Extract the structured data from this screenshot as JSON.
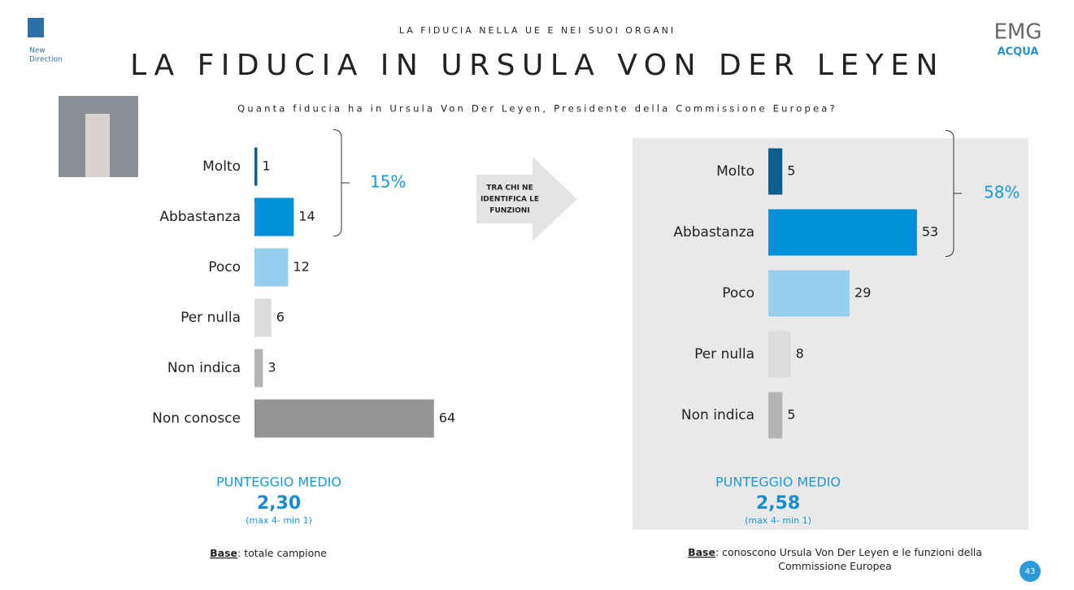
{
  "header": {
    "kicker": "LA FIDUCIA NELLA UE E NEI SUOI ORGANI",
    "title": "LA FIDUCIA IN URSULA VON DER LEYEN",
    "question": "Quanta fiducia ha in Ursula Von Der Leyen, Presidente della Commissione Europea?"
  },
  "logos": {
    "left": [
      "New",
      "Direction"
    ],
    "right": [
      "EMG",
      "ACQUA"
    ]
  },
  "arrow_label": [
    "TRA CHI  NE",
    "IDENTIFICA LE",
    "FUNZIONI"
  ],
  "page_number": "43",
  "chart_data": [
    {
      "type": "bar",
      "orientation": "horizontal",
      "categories": [
        "Molto",
        "Abbastanza",
        "Poco",
        "Per nulla",
        "Non indica",
        "Non conosce"
      ],
      "values": [
        1,
        14,
        12,
        6,
        3,
        64
      ],
      "colors": [
        "#0b5e8e",
        "#0090d9",
        "#95cfee",
        "#dcdcdc",
        "#b4b4b6",
        "#959595"
      ],
      "bracket_label": "15%",
      "score_title": "PUNTEGGIO MEDIO",
      "score": "2,30",
      "score_note": "(max 4- min 1)",
      "base_label": "Base",
      "base_text": [
        ": totale campione"
      ]
    },
    {
      "type": "bar",
      "orientation": "horizontal",
      "categories": [
        "Molto",
        "Abbastanza",
        "Poco",
        "Per nulla",
        "Non indica"
      ],
      "values": [
        5,
        53,
        29,
        8,
        5
      ],
      "colors": [
        "#0b5e8e",
        "#0090d9",
        "#95cfee",
        "#dcdcdc",
        "#b4b4b6"
      ],
      "bracket_label": "58%",
      "score_title": "PUNTEGGIO MEDIO",
      "score": "2,58",
      "score_note": "(max 4- min 1)",
      "base_label": "Base",
      "base_text": [
        ": conoscono Ursula Von Der Leyen e le funzioni della",
        "Commissione Europea"
      ]
    }
  ]
}
